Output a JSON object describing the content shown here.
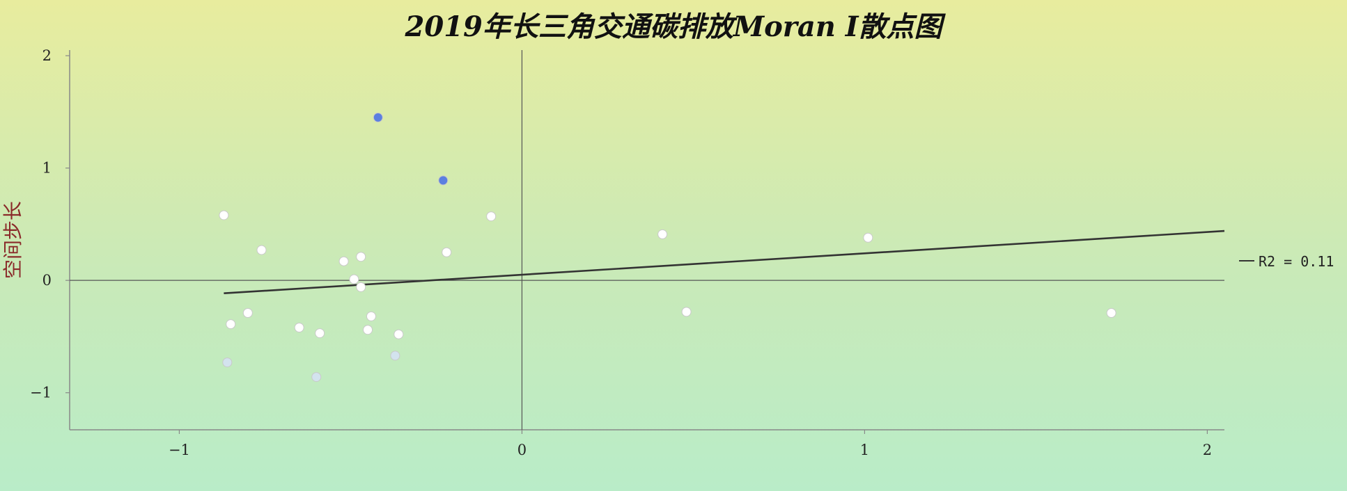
{
  "chart_data": {
    "type": "scatter",
    "title": "2019年长三角交通碳排放Moran I散点图",
    "xlabel": "",
    "ylabel": "空间步长",
    "xlim": [
      -1.32,
      2.05
    ],
    "ylim": [
      -1.33,
      2.05
    ],
    "xticks": [
      -1,
      0,
      1,
      2
    ],
    "yticks": [
      -1,
      0,
      1,
      2
    ],
    "xtick_labels": [
      "−1",
      "0",
      "1",
      "2"
    ],
    "ytick_labels": [
      "−1",
      "0",
      "1",
      "2"
    ],
    "grid": false,
    "colors": {
      "highlight": "#5b7fe0",
      "light_blue": "#d3e3ee",
      "white": "#ffffff",
      "line": "#333333"
    },
    "points": [
      {
        "x": -0.42,
        "y": 1.45,
        "color": "#5b7fe0"
      },
      {
        "x": -0.23,
        "y": 0.89,
        "color": "#5b7fe0"
      },
      {
        "x": -0.87,
        "y": 0.58,
        "color": "#ffffff"
      },
      {
        "x": -0.76,
        "y": 0.27,
        "color": "#ffffff"
      },
      {
        "x": -0.52,
        "y": 0.17,
        "color": "#ffffff"
      },
      {
        "x": -0.47,
        "y": 0.21,
        "color": "#ffffff"
      },
      {
        "x": -0.49,
        "y": 0.01,
        "color": "#ffffff"
      },
      {
        "x": -0.47,
        "y": -0.06,
        "color": "#ffffff"
      },
      {
        "x": -0.22,
        "y": 0.25,
        "color": "#ffffff"
      },
      {
        "x": -0.09,
        "y": 0.57,
        "color": "#ffffff"
      },
      {
        "x": 0.41,
        "y": 0.41,
        "color": "#ffffff"
      },
      {
        "x": 1.01,
        "y": 0.38,
        "color": "#ffffff"
      },
      {
        "x": 0.48,
        "y": -0.28,
        "color": "#ffffff"
      },
      {
        "x": 1.72,
        "y": -0.29,
        "color": "#ffffff"
      },
      {
        "x": -0.8,
        "y": -0.29,
        "color": "#ffffff"
      },
      {
        "x": -0.85,
        "y": -0.39,
        "color": "#ffffff"
      },
      {
        "x": -0.65,
        "y": -0.42,
        "color": "#ffffff"
      },
      {
        "x": -0.59,
        "y": -0.47,
        "color": "#ffffff"
      },
      {
        "x": -0.44,
        "y": -0.32,
        "color": "#ffffff"
      },
      {
        "x": -0.45,
        "y": -0.44,
        "color": "#ffffff"
      },
      {
        "x": -0.36,
        "y": -0.48,
        "color": "#ffffff"
      },
      {
        "x": -0.86,
        "y": -0.73,
        "color": "#d3e3ee"
      },
      {
        "x": -0.6,
        "y": -0.86,
        "color": "#d3e3ee"
      },
      {
        "x": -0.37,
        "y": -0.67,
        "color": "#d3e3ee"
      }
    ],
    "trendline": {
      "x": [
        -0.87,
        2.05
      ],
      "y": [
        -0.115,
        0.44
      ]
    },
    "legend": {
      "label": "R2 = 0.11",
      "placement": "right"
    }
  }
}
